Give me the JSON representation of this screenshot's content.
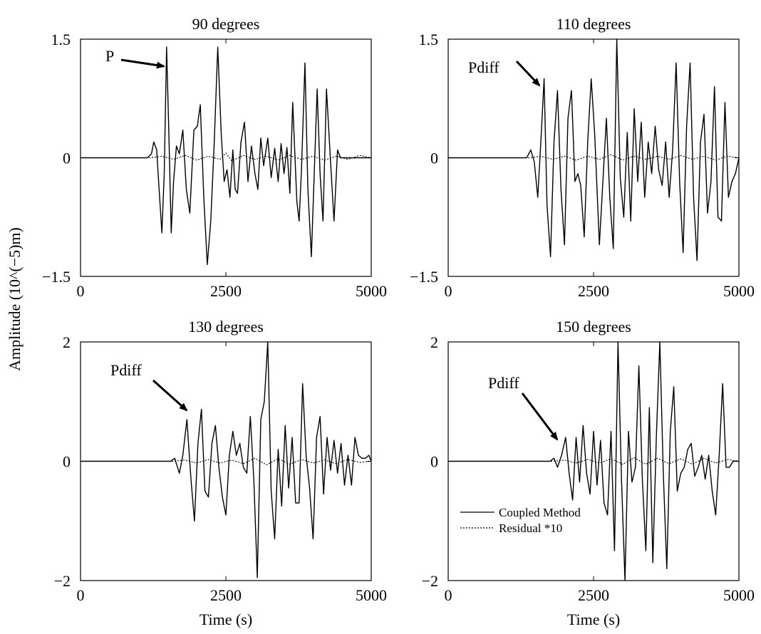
{
  "figure": {
    "ylabel": "Amplitude (10^(−5)m)",
    "legend": {
      "placement": "bottom-left of 150 degrees panel",
      "entries": [
        {
          "label": "Coupled Method",
          "style": "solid"
        },
        {
          "label": "Residual *10",
          "style": "dotted"
        }
      ]
    }
  },
  "chart_data": [
    {
      "type": "line",
      "title": "90 degrees",
      "xlabel": "",
      "xlim": [
        0,
        5000
      ],
      "ylim": [
        -1.5,
        1.5
      ],
      "xticks": [
        0,
        2500,
        5000
      ],
      "yticks": [
        1.5,
        0,
        -1.5
      ],
      "tick_labels": {
        "x": [
          "0",
          "2500",
          "5000"
        ],
        "y": [
          "1.5",
          "0",
          "−1.5"
        ]
      },
      "annotations": [
        {
          "text": "P",
          "points_to": [
            1460,
            1.15
          ]
        }
      ],
      "series": [
        {
          "name": "Coupled Method",
          "x": [
            0,
            1150,
            1220,
            1260,
            1310,
            1360,
            1400,
            1440,
            1480,
            1520,
            1560,
            1600,
            1650,
            1700,
            1760,
            1820,
            1880,
            1950,
            2010,
            2060,
            2120,
            2180,
            2240,
            2300,
            2360,
            2420,
            2470,
            2520,
            2570,
            2620,
            2660,
            2700,
            2760,
            2820,
            2880,
            2940,
            3000,
            3050,
            3100,
            3150,
            3220,
            3280,
            3340,
            3400,
            3450,
            3500,
            3550,
            3600,
            3650,
            3720,
            3760,
            3800,
            3860,
            3910,
            3970,
            4020,
            4070,
            4120,
            4170,
            4230,
            4300,
            4360,
            4420,
            4470,
            4520,
            4580,
            4640,
            4700,
            4740,
            4780,
            4830,
            4880,
            4920,
            4950,
            4980,
            5000
          ],
          "y": [
            0,
            0,
            0.05,
            0.2,
            0.1,
            -0.5,
            -0.95,
            -0.2,
            1.4,
            0.3,
            -0.95,
            -0.3,
            0.15,
            0.05,
            0.35,
            -0.4,
            -0.7,
            0.35,
            0.4,
            0.67,
            -0.5,
            -1.35,
            -0.8,
            0.2,
            1.4,
            0.3,
            -0.3,
            -0.15,
            -0.5,
            0.1,
            -0.4,
            -0.45,
            0.2,
            0.45,
            -0.3,
            0.15,
            -0.2,
            -0.4,
            0.25,
            -0.1,
            0.25,
            -0.25,
            0.12,
            -0.3,
            0.18,
            -0.2,
            0.13,
            -0.45,
            0.7,
            -0.55,
            -0.8,
            -0.15,
            1.2,
            -0.4,
            -1.25,
            -0.2,
            0.87,
            -0.2,
            -0.8,
            0.87,
            -0.05,
            -0.8,
            0.1,
            0,
            0,
            0,
            0,
            0,
            0,
            0,
            0,
            0,
            0,
            0,
            0,
            0
          ]
        },
        {
          "name": "Residual *10",
          "x": [
            0,
            1200,
            1400,
            1600,
            1800,
            2000,
            2200,
            2400,
            2500,
            2600,
            2800,
            3000,
            3200,
            3400,
            3600,
            3800,
            4000,
            4200,
            4400,
            4600,
            4800,
            5000
          ],
          "y": [
            0,
            0,
            0.02,
            -0.02,
            0.03,
            -0.03,
            0.02,
            -0.02,
            0.06,
            -0.04,
            0.03,
            -0.02,
            0.02,
            -0.03,
            0.03,
            -0.02,
            0.02,
            -0.03,
            0.02,
            -0.02,
            0.03,
            0
          ]
        }
      ]
    },
    {
      "type": "line",
      "title": "110 degrees",
      "xlabel": "",
      "xlim": [
        0,
        5000
      ],
      "ylim": [
        -1.5,
        1.5
      ],
      "xticks": [
        0,
        2500,
        5000
      ],
      "yticks": [
        1.5,
        0,
        -1.5
      ],
      "tick_labels": {
        "x": [
          "0",
          "2500",
          "5000"
        ],
        "y": [
          "1.5",
          "0",
          "−1.5"
        ]
      },
      "annotations": [
        {
          "text": "Pdiff",
          "points_to": [
            1600,
            0.9
          ]
        }
      ],
      "series": [
        {
          "name": "Coupled Method",
          "x": [
            0,
            1350,
            1420,
            1480,
            1540,
            1600,
            1650,
            1700,
            1760,
            1820,
            1880,
            1940,
            2000,
            2060,
            2120,
            2180,
            2230,
            2280,
            2340,
            2400,
            2460,
            2520,
            2600,
            2660,
            2720,
            2780,
            2840,
            2900,
            2960,
            3020,
            3080,
            3140,
            3200,
            3260,
            3320,
            3380,
            3440,
            3500,
            3560,
            3620,
            3680,
            3740,
            3800,
            3860,
            3920,
            3980,
            4040,
            4100,
            4160,
            4220,
            4280,
            4340,
            4400,
            4460,
            4520,
            4580,
            4640,
            4700,
            4760,
            4820,
            4880,
            4940,
            5000
          ],
          "y": [
            0,
            0,
            0.1,
            -0.05,
            -0.5,
            0.3,
            1.0,
            -0.6,
            -1.25,
            0.2,
            0.85,
            -0.4,
            -1.1,
            0.5,
            0.85,
            -0.3,
            -0.2,
            -0.35,
            -1.0,
            0.2,
            1.0,
            0.3,
            -1.1,
            -0.3,
            0.5,
            -0.5,
            -1.15,
            1.5,
            -0.25,
            -0.75,
            0.32,
            -0.8,
            0.62,
            -0.3,
            0.45,
            -0.5,
            0.2,
            -0.2,
            0.4,
            -0.15,
            -0.35,
            0.2,
            -0.5,
            0.1,
            1.2,
            -0.3,
            -1.2,
            0.4,
            1.2,
            -0.5,
            -1.3,
            0.2,
            0.55,
            -0.7,
            -0.3,
            0.9,
            -0.75,
            -0.8,
            0.7,
            -0.5,
            -0.3,
            -0.2,
            0
          ]
        },
        {
          "name": "Residual *10",
          "x": [
            0,
            1400,
            1600,
            1800,
            2000,
            2200,
            2400,
            2600,
            2800,
            3000,
            3200,
            3400,
            3600,
            3800,
            4000,
            4200,
            4400,
            4600,
            4800,
            5000
          ],
          "y": [
            0,
            0,
            0.02,
            -0.02,
            0.02,
            -0.03,
            0.02,
            -0.02,
            0.04,
            -0.03,
            0.02,
            -0.02,
            0.02,
            -0.02,
            0.03,
            -0.02,
            0.02,
            -0.03,
            0.02,
            0
          ]
        }
      ]
    },
    {
      "type": "line",
      "title": "130 degrees",
      "xlabel": "Time (s)",
      "xlim": [
        0,
        5000
      ],
      "ylim": [
        -2,
        2
      ],
      "xticks": [
        0,
        2500,
        5000
      ],
      "yticks": [
        2,
        0,
        -2
      ],
      "tick_labels": {
        "x": [
          "0",
          "2500",
          "5000"
        ],
        "y": [
          "2",
          "0",
          "−2"
        ]
      },
      "annotations": [
        {
          "text": "Pdiff",
          "points_to": [
            1800,
            0.7
          ]
        }
      ],
      "series": [
        {
          "name": "Coupled Method",
          "x": [
            0,
            1550,
            1620,
            1700,
            1760,
            1830,
            1900,
            1960,
            2020,
            2080,
            2140,
            2200,
            2260,
            2320,
            2380,
            2440,
            2500,
            2560,
            2620,
            2680,
            2740,
            2800,
            2860,
            2920,
            2980,
            3040,
            3100,
            3160,
            3220,
            3280,
            3340,
            3400,
            3460,
            3520,
            3580,
            3640,
            3700,
            3760,
            3820,
            3880,
            3940,
            4000,
            4060,
            4120,
            4180,
            4240,
            4300,
            4360,
            4420,
            4480,
            4540,
            4600,
            4660,
            4720,
            4780,
            4840,
            4900,
            4960,
            5000
          ],
          "y": [
            0,
            0,
            0.05,
            -0.2,
            0.1,
            0.7,
            -0.3,
            -1.0,
            0.3,
            0.87,
            -0.5,
            -0.6,
            0.3,
            0.6,
            -0.1,
            -0.6,
            -0.9,
            0.1,
            0.5,
            0.1,
            0.3,
            -0.1,
            -0.2,
            0.75,
            -0.3,
            -1.95,
            0.7,
            1.0,
            2.0,
            -0.5,
            -1.3,
            0.2,
            -0.75,
            0.6,
            -0.45,
            0.4,
            -0.7,
            -0.7,
            1.3,
            0.1,
            -0.45,
            -1.3,
            0.4,
            0.75,
            -0.55,
            0.4,
            -0.15,
            0.35,
            -0.2,
            0.3,
            -0.4,
            0.1,
            -0.4,
            0.4,
            0.1,
            0.05,
            0.05,
            0.1,
            0
          ]
        },
        {
          "name": "Residual *10",
          "x": [
            0,
            1600,
            1800,
            2000,
            2200,
            2400,
            2600,
            2800,
            3000,
            3200,
            3400,
            3600,
            3800,
            4000,
            4200,
            4400,
            4600,
            4800,
            5000
          ],
          "y": [
            0,
            0,
            0.02,
            -0.03,
            0.03,
            -0.03,
            0.02,
            -0.04,
            0.05,
            -0.06,
            0.04,
            -0.05,
            0.03,
            -0.03,
            0.02,
            -0.04,
            0.03,
            -0.02,
            0
          ]
        }
      ]
    },
    {
      "type": "line",
      "title": "150 degrees",
      "xlabel": "Time (s)",
      "xlim": [
        0,
        5000
      ],
      "ylim": [
        -2,
        2
      ],
      "xticks": [
        0,
        2500,
        5000
      ],
      "yticks": [
        2,
        0,
        -2
      ],
      "tick_labels": {
        "x": [
          "0",
          "2500",
          "5000"
        ],
        "y": [
          "2",
          "0",
          "−2"
        ]
      },
      "annotations": [
        {
          "text": "Pdiff",
          "points_to": [
            2050,
            0.35
          ]
        }
      ],
      "series": [
        {
          "name": "Coupled Method",
          "x": [
            0,
            1750,
            1820,
            1880,
            1950,
            2020,
            2080,
            2140,
            2200,
            2260,
            2320,
            2380,
            2440,
            2500,
            2560,
            2620,
            2680,
            2740,
            2800,
            2860,
            2920,
            2980,
            3040,
            3100,
            3160,
            3220,
            3280,
            3340,
            3400,
            3460,
            3520,
            3580,
            3640,
            3700,
            3760,
            3820,
            3880,
            3940,
            4000,
            4060,
            4120,
            4180,
            4240,
            4300,
            4360,
            4420,
            4480,
            4540,
            4600,
            4660,
            4720,
            4780,
            4840,
            4900,
            4960,
            5000
          ],
          "y": [
            0,
            0,
            0.05,
            -0.1,
            0.1,
            0.4,
            -0.2,
            -0.65,
            0.4,
            -0.35,
            0.6,
            -0.2,
            -0.55,
            0.5,
            -0.4,
            0.35,
            -0.7,
            -0.9,
            0.5,
            -1.5,
            2.0,
            -0.3,
            -2.0,
            0.5,
            -0.35,
            -0.1,
            1.6,
            -0.3,
            -1.5,
            0.9,
            -1.7,
            0.4,
            2.0,
            -0.2,
            -1.8,
            0.5,
            1.25,
            -0.5,
            -0.2,
            -0.1,
            0.2,
            0.3,
            -0.25,
            -0.1,
            0.1,
            -0.3,
            0.1,
            -0.5,
            -0.9,
            0.1,
            1.3,
            -0.1,
            -0.1,
            0,
            0,
            0
          ]
        },
        {
          "name": "Residual *10",
          "x": [
            0,
            1800,
            2000,
            2200,
            2400,
            2600,
            2800,
            3000,
            3200,
            3400,
            3600,
            3800,
            4000,
            4200,
            4400,
            4600,
            4800,
            5000
          ],
          "y": [
            0,
            0,
            0.02,
            -0.03,
            0.03,
            -0.03,
            0.04,
            -0.05,
            0.06,
            -0.05,
            0.05,
            -0.04,
            0.04,
            -0.05,
            0.05,
            -0.03,
            0.03,
            0
          ]
        }
      ]
    }
  ]
}
